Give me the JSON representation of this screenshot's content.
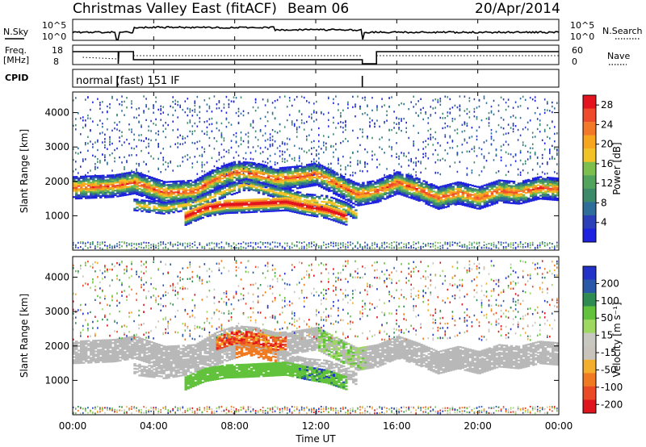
{
  "header": {
    "title": "Christmas Valley East (fitACF)",
    "beam": "Beam 06",
    "date": "20/Apr/2014"
  },
  "top_panels": {
    "nsky_label": "N.Sky",
    "nsearch_label": "N.Search",
    "nsky_ticks": [
      "10^5",
      "10^0"
    ],
    "nsearch_ticks": [
      "10^5",
      "10^0"
    ],
    "freq_label_line1": "Freq.",
    "freq_label_line2": "[MHz]",
    "freq_ticks": [
      "18",
      "8"
    ],
    "nave_label": "Nave",
    "nave_ticks": [
      "60",
      "0"
    ],
    "cpid_label": "CPID",
    "cpid_text": "normal (fast) 151 IF"
  },
  "colors": {
    "ground": "#b8b8b8",
    "power_colormap": [
      "#1e22e0",
      "#2a3fb8",
      "#2e6e98",
      "#3c8a6a",
      "#52a35c",
      "#7cbf4e",
      "#f2c229",
      "#f7a61f",
      "#f3782a",
      "#ee4a2b",
      "#e4141e"
    ],
    "velocity_colormap": [
      "#2232c8",
      "#2a58a8",
      "#2e8c52",
      "#62c23c",
      "#9fd860",
      "#c8c8c0",
      "#c8c4bc",
      "#f4ae2e",
      "#ef7a22",
      "#ea4a25",
      "#e0141c"
    ]
  },
  "chart_data": [
    {
      "type": "heatmap",
      "name": "power",
      "ylabel": "Slant Range [km]",
      "y_ticks": [
        "1000",
        "2000",
        "3000",
        "4000"
      ],
      "ylim": [
        0,
        4600
      ],
      "colorbar_label": "Power [dB]",
      "colorbar_ticks": [
        "4",
        "8",
        "12",
        "16",
        "20",
        "24",
        "28"
      ],
      "colorbar_range": [
        0,
        30
      ]
    },
    {
      "type": "heatmap",
      "name": "velocity",
      "ylabel": "Slant Range [km]",
      "y_ticks": [
        "1000",
        "2000",
        "3000",
        "4000"
      ],
      "ylim": [
        0,
        4600
      ],
      "colorbar_label": "Velocity [m s⁻¹]",
      "colorbar_ticks": [
        "200",
        "100",
        "50",
        "15",
        "-15",
        "-50",
        "-100",
        "-200"
      ]
    }
  ],
  "x_axis": {
    "label": "Time UT",
    "ticks": [
      "00:00",
      "04:00",
      "08:00",
      "12:00",
      "16:00",
      "20:00",
      "00:00"
    ],
    "range_hours": [
      0,
      24
    ]
  },
  "echo_regions": {
    "ionospheric_band_a": [
      [
        0,
        1800
      ],
      [
        2,
        1850
      ],
      [
        3,
        1950
      ],
      [
        4.5,
        1650
      ],
      [
        6,
        1700
      ],
      [
        7,
        2050
      ],
      [
        8,
        2250
      ],
      [
        9,
        2200
      ],
      [
        10,
        2050
      ],
      [
        11,
        2100
      ],
      [
        12,
        2200
      ],
      [
        13,
        1900
      ],
      [
        14,
        1600
      ],
      [
        15,
        1700
      ],
      [
        16,
        1950
      ],
      [
        17,
        1750
      ],
      [
        18,
        1500
      ],
      [
        19,
        1650
      ],
      [
        20,
        1500
      ],
      [
        21,
        1700
      ],
      [
        22,
        1650
      ],
      [
        23,
        1800
      ],
      [
        24,
        1750
      ]
    ],
    "ionospheric_band_b": [
      [
        3,
        1300
      ],
      [
        4.5,
        1200
      ],
      [
        6,
        1350
      ],
      [
        7.5,
        1700
      ],
      [
        8.5,
        1900
      ],
      [
        9.5,
        1750
      ],
      [
        10.5,
        1600
      ],
      [
        11.5,
        1450
      ],
      [
        12.5,
        1400
      ],
      [
        13.5,
        1200
      ],
      [
        14,
        1000
      ]
    ],
    "ground_band": [
      [
        5.5,
        950
      ],
      [
        6.5,
        1200
      ],
      [
        7.5,
        1300
      ],
      [
        8.5,
        1320
      ],
      [
        9.5,
        1350
      ],
      [
        10.5,
        1380
      ],
      [
        11.5,
        1250
      ],
      [
        12.5,
        1150
      ],
      [
        13.5,
        950
      ]
    ]
  }
}
